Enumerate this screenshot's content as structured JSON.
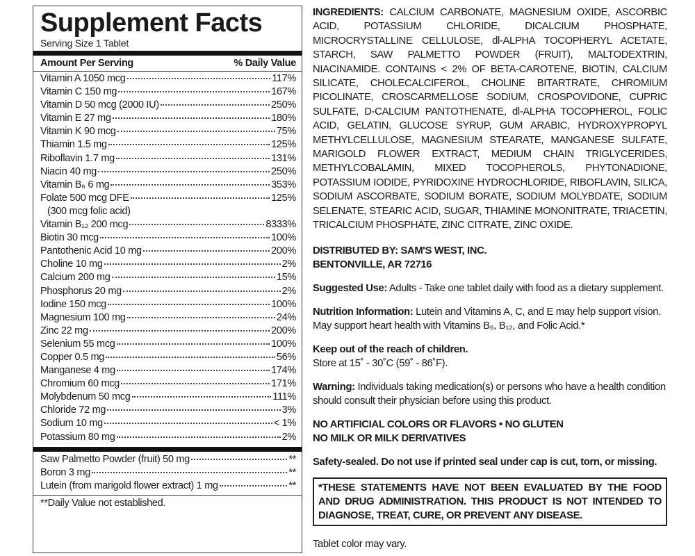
{
  "facts": {
    "title": "Supplement Facts",
    "serving_size": "Serving Size 1 Tablet",
    "header": [
      "Amount Per Serving",
      "% Daily Value"
    ],
    "nutrients": [
      {
        "name": "Vitamin A 1050 mcg",
        "dv": "117%"
      },
      {
        "name": "Vitamin C 150 mg",
        "dv": "167%"
      },
      {
        "name": "Vitamin D 50 mcg (2000 IU)",
        "dv": "250%"
      },
      {
        "name": "Vitamin E 27 mg",
        "dv": "180%"
      },
      {
        "name": "Vitamin K 90 mcg",
        "dv": "75%"
      },
      {
        "name": "Thiamin 1.5 mg",
        "dv": "125%"
      },
      {
        "name": "Riboflavin 1.7 mg",
        "dv": "131%"
      },
      {
        "name": "Niacin 40 mg",
        "dv": "250%"
      },
      {
        "name": "Vitamin B₆ 6 mg",
        "dv": "353%"
      },
      {
        "name": "Folate 500 mcg DFE",
        "dv": "125%",
        "sub": "(300 mcg folic acid)"
      },
      {
        "name": "Vitamin B₁₂ 200 mcg",
        "dv": "8333%"
      },
      {
        "name": "Biotin 30 mcg",
        "dv": "100%"
      },
      {
        "name": "Pantothenic Acid 10 mg",
        "dv": "200%"
      },
      {
        "name": "Choline 10 mg",
        "dv": "2%"
      },
      {
        "name": "Calcium 200 mg",
        "dv": "15%"
      },
      {
        "name": "Phosphorus 20 mg",
        "dv": "2%"
      },
      {
        "name": "Iodine 150 mcg",
        "dv": "100%"
      },
      {
        "name": "Magnesium 100 mg",
        "dv": "24%"
      },
      {
        "name": "Zinc 22 mg",
        "dv": "200%"
      },
      {
        "name": "Selenium 55 mcg",
        "dv": "100%"
      },
      {
        "name": "Copper 0.5 mg",
        "dv": "56%"
      },
      {
        "name": "Manganese 4 mg",
        "dv": "174%"
      },
      {
        "name": "Chromium 60 mcg",
        "dv": "171%"
      },
      {
        "name": "Molybdenum 50 mcg",
        "dv": "111%"
      },
      {
        "name": "Chloride 72 mg",
        "dv": "3%"
      },
      {
        "name": "Sodium 10 mg",
        "dv": "< 1%"
      },
      {
        "name": "Potassium 80 mg",
        "dv": "2%"
      }
    ],
    "others": [
      {
        "name": "Saw Palmetto Powder (fruit) 50 mg",
        "dv": "**"
      },
      {
        "name": "Boron 3 mg",
        "dv": "**"
      },
      {
        "name": "Lutein (from marigold flower extract) 1 mg",
        "dv": "**"
      }
    ],
    "footnote": "**Daily Value not established."
  },
  "label": {
    "ingredients": {
      "label": "INGREDIENTS:",
      "text": "CALCIUM CARBONATE, MAGNESIUM OXIDE, ASCORBIC ACID, POTASSIUM CHLORIDE, DICALCIUM PHOSPHATE, MICROCRYSTALLINE CELLULOSE, dl-ALPHA TOCOPHERYL ACETATE, STARCH, SAW PALMETTO POWDER (FRUIT), MALTODEXTRIN, NIACINAMIDE. CONTAINS < 2% OF BETA-CAROTENE, BIOTIN, CALCIUM SILICATE, CHOLECALCIFEROL, CHOLINE BITARTRATE, CHROMIUM PICOLINATE, CROSCARMELLOSE SODIUM, CROSPOVIDONE, CUPRIC SULFATE, D-CALCIUM PANTOTHENATE, dl-ALPHA TOCOPHEROL, FOLIC ACID, GELATIN, GLUCOSE SYRUP, GUM ARABIC, HYDROXYPROPYL METHYLCELLULOSE, MAGNESIUM STEARATE, MANGANESE SULFATE, MARIGOLD FLOWER EXTRACT, MEDIUM CHAIN TRIGLYCERIDES, METHYLCOBALAMIN, MIXED TOCOPHEROLS, PHYTONADIONE, POTASSIUM IODIDE, PYRIDOXINE HYDROCHLORIDE, RIBOFLAVIN, SILICA, SODIUM ASCORBATE, SODIUM BORATE, SODIUM MOLYBDATE, SODIUM SELENATE, STEARIC ACID, SUGAR, THIAMINE MONONITRATE, TRIACETIN, TRICALCIUM PHOSPHATE, ZINC CITRATE, ZINC OXIDE."
    },
    "distributor": [
      "DISTRIBUTED BY: SAM'S WEST, INC.",
      "BENTONVILLE, AR 72716"
    ],
    "suggested_use": {
      "label": "Suggested Use:",
      "text": "Adults - Take one tablet daily with food as a dietary supplement."
    },
    "nutrition_information": {
      "label": "Nutrition Information:",
      "text": "Lutein and Vitamins A, C, and E may help support vision. May support heart health with Vitamins B₆, B₁₂, and Folic Acid.*"
    },
    "storage": {
      "label": "Keep out of the reach of children.",
      "text": "Store at 15˚ - 30˚C (59˚ - 86˚F)."
    },
    "warning": {
      "label": "Warning:",
      "text": "Individuals taking medication(s) or persons who have a health condition should consult their physician before using this product."
    },
    "claims": [
      "NO ARTIFICIAL COLORS OR FLAVORS • NO GLUTEN",
      "NO MILK OR MILK DERIVATIVES"
    ],
    "safety": "Safety-sealed. Do not use if printed seal under cap is cut, torn, or missing.",
    "disclaimer": "*THESE STATEMENTS HAVE NOT BEEN EVALUATED BY THE FOOD AND DRUG ADMINISTRATION. THIS PRODUCT IS NOT INTENDED TO DIAGNOSE, TREAT, CURE, OR PREVENT ANY DISEASE.",
    "tablet_color": "Tablet color may vary."
  }
}
